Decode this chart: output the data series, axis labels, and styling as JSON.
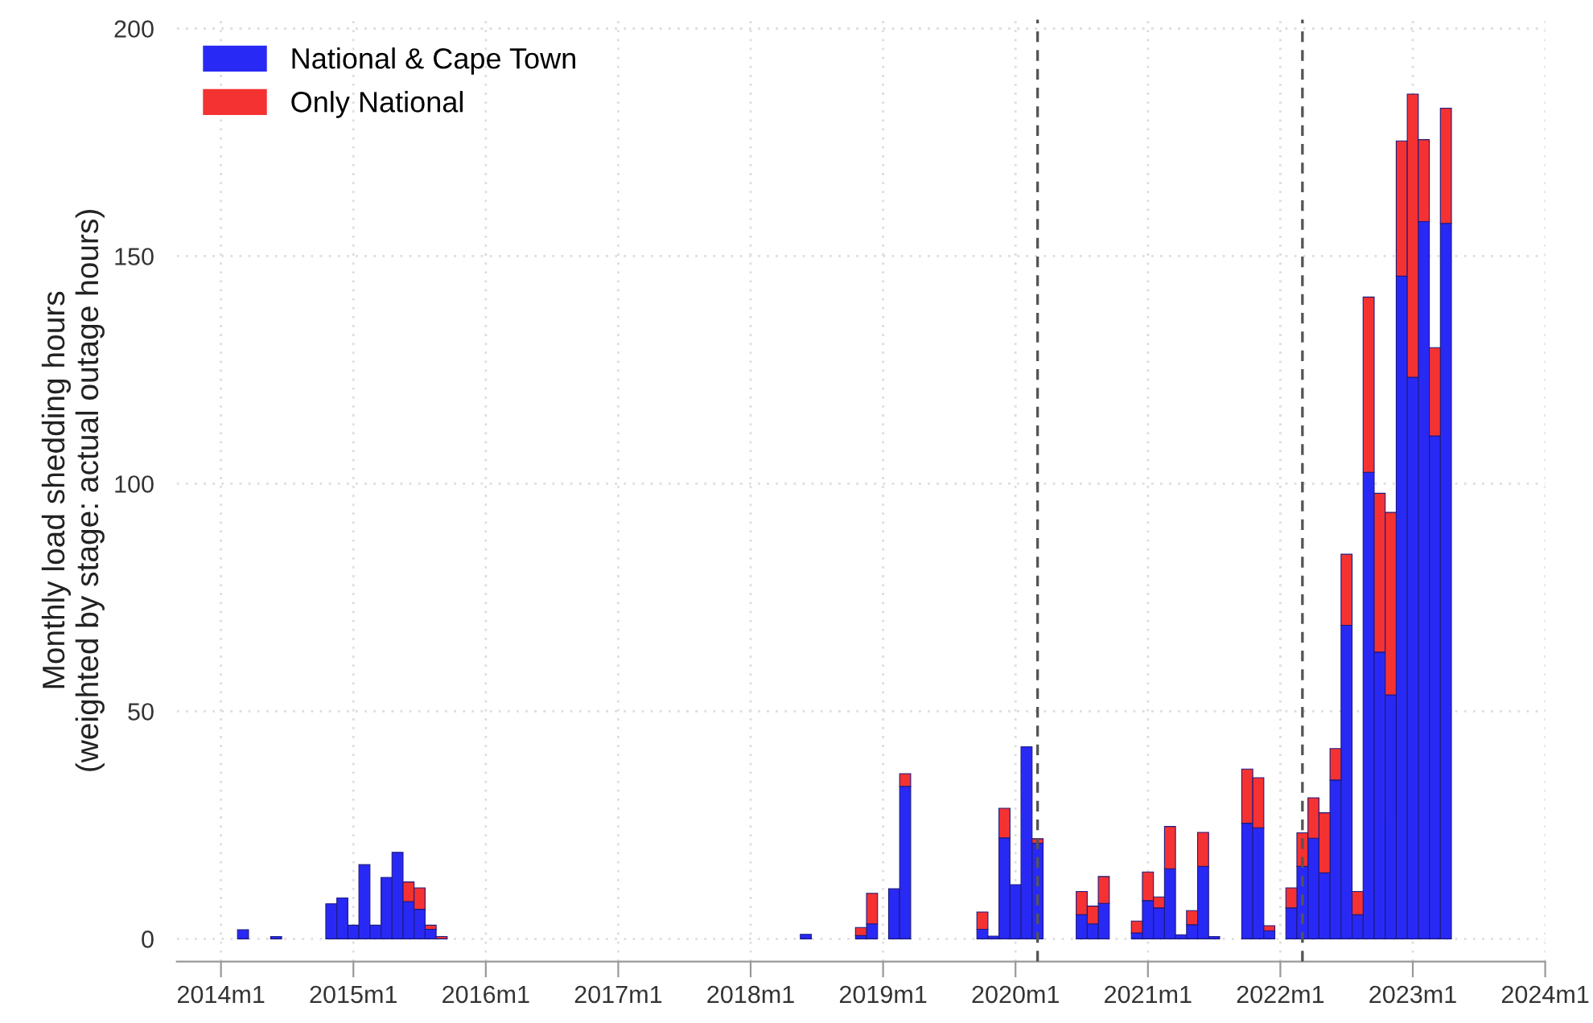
{
  "chart_data": {
    "type": "bar",
    "stacked": true,
    "ylabel": "Monthly load shedding hours\n(weighted by stage: actual outage hours)",
    "x": [
      "2014-03",
      "2014-06",
      "2014-11",
      "2014-12",
      "2015-01",
      "2015-02",
      "2015-03",
      "2015-04",
      "2015-05",
      "2015-06",
      "2015-07",
      "2015-08",
      "2015-09",
      "2018-06",
      "2018-11",
      "2018-12",
      "2019-02",
      "2019-03",
      "2019-10",
      "2019-11",
      "2019-12",
      "2020-01",
      "2020-02",
      "2020-03",
      "2020-07",
      "2020-08",
      "2020-09",
      "2020-12",
      "2021-01",
      "2021-02",
      "2021-03",
      "2021-04",
      "2021-05",
      "2021-06",
      "2021-07",
      "2021-10",
      "2021-11",
      "2021-12",
      "2022-02",
      "2022-03",
      "2022-04",
      "2022-05",
      "2022-06",
      "2022-07",
      "2022-08",
      "2022-09",
      "2022-10",
      "2022-11",
      "2022-12",
      "2023-01",
      "2023-02",
      "2023-03",
      "2023-04"
    ],
    "series": [
      {
        "name": "National & Cape Town",
        "color": "#2929f5",
        "values": [
          2.0,
          0.5,
          7.7,
          9.0,
          3.0,
          16.3,
          3.0,
          13.5,
          19.0,
          8.2,
          6.5,
          2.1,
          null,
          1.0,
          0.7,
          3.3,
          11,
          33.5,
          2.1,
          0.6,
          22.2,
          11.9,
          42.2,
          21,
          5.3,
          3.3,
          7.8,
          1.3,
          8.4,
          6.8,
          15.4,
          0.9,
          3.1,
          15.9,
          0.5,
          25.4,
          24.4,
          1.8,
          6.8,
          15.9,
          22.1,
          14.5,
          34.9,
          68.9,
          5.3,
          102.5,
          63,
          53.6,
          145.6,
          123.4,
          157.6,
          110.5,
          157.2
        ]
      },
      {
        "name": "Only National",
        "color": "#f53232",
        "values": [
          null,
          null,
          null,
          null,
          null,
          null,
          null,
          null,
          null,
          4.3,
          4.7,
          0.9,
          0.5,
          null,
          1.8,
          6.7,
          null,
          2.8,
          3.8,
          null,
          6.5,
          null,
          null,
          1,
          5.1,
          3.9,
          5.9,
          2.6,
          6.3,
          2.4,
          9.3,
          null,
          3.1,
          7.5,
          null,
          11.9,
          11,
          1.1,
          4.4,
          7.4,
          8.9,
          13.2,
          6.9,
          15.6,
          5.1,
          38.5,
          34.9,
          40.1,
          29.7,
          62.2,
          18,
          19.4,
          25.3
        ]
      }
    ],
    "xlim": [
      "2013-09",
      "2024-01"
    ],
    "xticks": [
      {
        "value": "2014-01",
        "label": "2014m1"
      },
      {
        "value": "2015-01",
        "label": "2015m1"
      },
      {
        "value": "2016-01",
        "label": "2016m1"
      },
      {
        "value": "2017-01",
        "label": "2017m1"
      },
      {
        "value": "2018-01",
        "label": "2018m1"
      },
      {
        "value": "2019-01",
        "label": "2019m1"
      },
      {
        "value": "2020-01",
        "label": "2020m1"
      },
      {
        "value": "2021-01",
        "label": "2021m1"
      },
      {
        "value": "2022-01",
        "label": "2022m1"
      },
      {
        "value": "2023-01",
        "label": "2023m1"
      },
      {
        "value": "2024-01",
        "label": "2024m1"
      }
    ],
    "ylim": [
      -5,
      202
    ],
    "yticks": [
      0,
      50,
      100,
      150,
      200
    ],
    "ref_lines": [
      {
        "axis": "x",
        "value": "2020-03",
        "label": null,
        "color": "#555555",
        "line_style": "dashed"
      },
      {
        "axis": "x",
        "value": "2022-03",
        "label": null,
        "color": "#555555",
        "line_style": "dashed"
      }
    ],
    "grid": true,
    "legend": "top left"
  }
}
